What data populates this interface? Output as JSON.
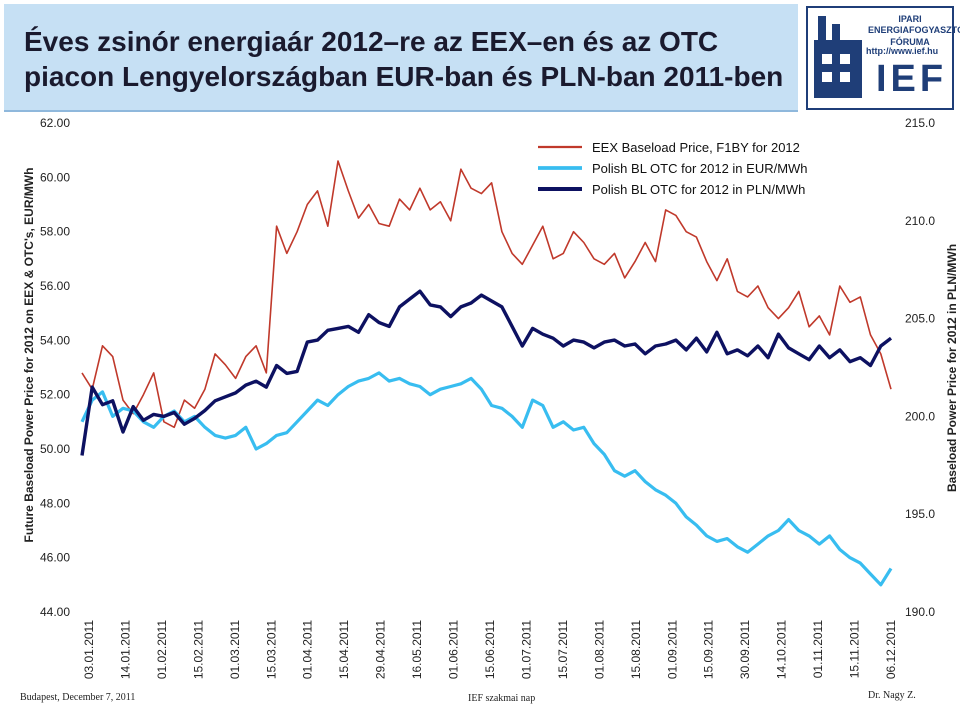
{
  "slide": {
    "title_line1": "Éves zsinór energiaár 2012–re az EEX–en és az OTC",
    "title_line2": "piacon Lengyelországban EUR-ban és PLN-ban 2011-ben",
    "footer_left": "Budapest, December 7, 2011",
    "footer_center": "IEF szakmai nap",
    "footer_right": "Dr. Nagy Z.",
    "logo_line1": "IPARI ENERGIAFOGYASZTÓK",
    "logo_line2": "FÓRUMA",
    "logo_url": "http://www.ief.hu",
    "logo_text": "IEF"
  },
  "chart_data": {
    "type": "line",
    "title": "",
    "ylabel": "Future Baseload Power Price for 2012 on EEX & OTC's, EUR/MWh",
    "y2label": "Baseload Power Price for 2012 in PLN/MWh",
    "ylim": [
      44,
      62
    ],
    "y2lim": [
      190,
      215
    ],
    "yticks": [
      "44.00",
      "46.00",
      "48.00",
      "50.00",
      "52.00",
      "54.00",
      "56.00",
      "58.00",
      "60.00",
      "62.00"
    ],
    "y2ticks": [
      "190.0",
      "195.0",
      "200.0",
      "205.0",
      "210.0",
      "215.0"
    ],
    "xticks": [
      "03.01.2011",
      "14.01.2011",
      "01.02.2011",
      "15.02.2011",
      "01.03.2011",
      "15.03.2011",
      "01.04.2011",
      "15.04.2011",
      "29.04.2011",
      "16.05.2011",
      "01.06.2011",
      "15.06.2011",
      "01.07.2011",
      "15.07.2011",
      "01.08.2011",
      "15.08.2011",
      "01.09.2011",
      "15.09.2011",
      "30.09.2011",
      "14.10.2011",
      "01.11.2011",
      "15.11.2011",
      "06.12.2011"
    ],
    "legend_position": "top-right",
    "series": [
      {
        "name": "EEX Baseload Price, F1BY for 2012",
        "axis": "left",
        "color": "#c0392b",
        "values": [
          52.8,
          52.2,
          53.8,
          53.4,
          51.8,
          51.3,
          52.0,
          52.8,
          51.0,
          50.8,
          51.8,
          51.5,
          52.2,
          53.5,
          53.1,
          52.6,
          53.4,
          53.8,
          52.8,
          58.2,
          57.2,
          58.0,
          59.0,
          59.5,
          58.2,
          60.6,
          59.5,
          58.5,
          59.0,
          58.3,
          58.2,
          59.2,
          58.8,
          59.6,
          58.8,
          59.1,
          58.4,
          60.3,
          59.6,
          59.4,
          59.8,
          58.0,
          57.2,
          56.8,
          57.5,
          58.2,
          57.0,
          57.2,
          58.0,
          57.6,
          57.0,
          56.8,
          57.2,
          56.3,
          56.9,
          57.6,
          56.9,
          58.8,
          58.6,
          58.0,
          57.8,
          56.9,
          56.2,
          57.0,
          55.8,
          55.6,
          56.0,
          55.2,
          54.8,
          55.2,
          55.8,
          54.5,
          54.9,
          54.2,
          56.0,
          55.4,
          55.6,
          54.2,
          53.5,
          52.2
        ]
      },
      {
        "name": "Polish BL OTC for 2012 in EUR/MWh",
        "axis": "left",
        "color": "#38bdf0",
        "values": [
          51.0,
          51.8,
          52.1,
          51.2,
          51.5,
          51.4,
          51.0,
          50.8,
          51.2,
          51.4,
          51.0,
          51.2,
          50.8,
          50.5,
          50.4,
          50.5,
          50.8,
          50.0,
          50.2,
          50.5,
          50.6,
          51.0,
          51.4,
          51.8,
          51.6,
          52.0,
          52.3,
          52.5,
          52.6,
          52.8,
          52.5,
          52.6,
          52.4,
          52.3,
          52.0,
          52.2,
          52.3,
          52.4,
          52.6,
          52.2,
          51.6,
          51.5,
          51.2,
          50.8,
          51.8,
          51.6,
          50.8,
          51.0,
          50.7,
          50.8,
          50.2,
          49.8,
          49.2,
          49.0,
          49.2,
          48.8,
          48.5,
          48.3,
          48.0,
          47.5,
          47.2,
          46.8,
          46.6,
          46.7,
          46.4,
          46.2,
          46.5,
          46.8,
          47.0,
          47.4,
          47.0,
          46.8,
          46.5,
          46.8,
          46.3,
          46.0,
          45.8,
          45.4,
          45.0,
          45.6
        ]
      },
      {
        "name": "Polish BL OTC for 2012 in PLN/MWh",
        "axis": "right",
        "color": "#0d1161",
        "values": [
          198.0,
          201.5,
          200.6,
          200.8,
          199.2,
          200.5,
          199.8,
          200.1,
          200.0,
          200.2,
          199.6,
          199.9,
          200.3,
          200.8,
          201.0,
          201.2,
          201.6,
          201.8,
          201.5,
          202.6,
          202.2,
          202.3,
          203.8,
          203.9,
          204.4,
          204.5,
          204.6,
          204.3,
          205.2,
          204.8,
          204.6,
          205.6,
          206.0,
          206.4,
          205.7,
          205.6,
          205.1,
          205.6,
          205.8,
          206.2,
          205.9,
          205.6,
          204.6,
          203.6,
          204.5,
          204.2,
          204.0,
          203.6,
          203.9,
          203.8,
          203.5,
          203.8,
          203.9,
          203.6,
          203.7,
          203.2,
          203.6,
          203.7,
          203.9,
          203.4,
          204.0,
          203.3,
          204.3,
          203.2,
          203.4,
          203.1,
          203.6,
          203.0,
          204.2,
          203.5,
          203.2,
          202.9,
          203.6,
          203.0,
          203.4,
          202.8,
          203.0,
          202.6,
          203.6,
          204.0
        ]
      }
    ]
  }
}
